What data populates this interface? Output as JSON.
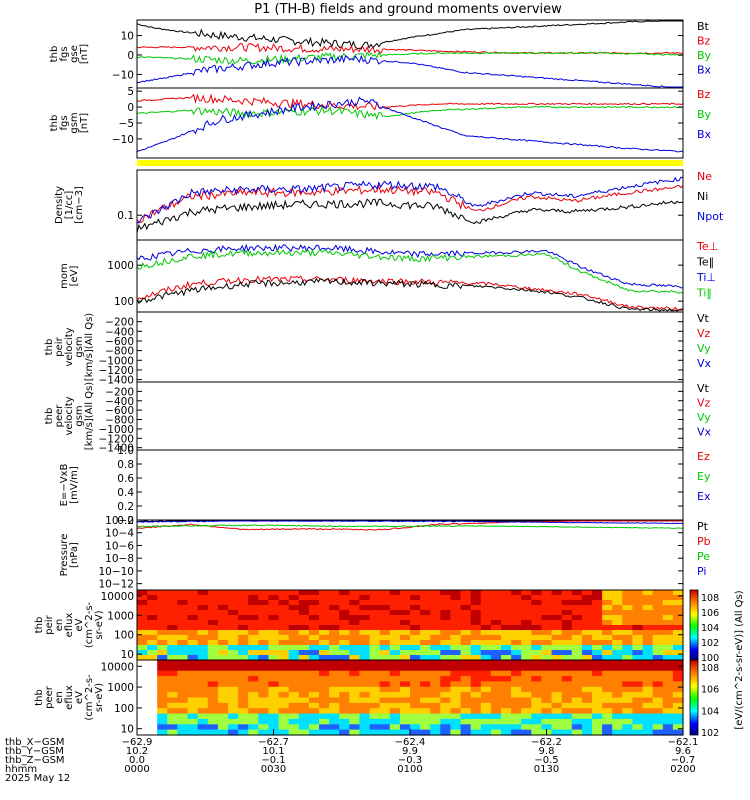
{
  "title": "P1 (TH-B) fields and ground moments overview",
  "colors": {
    "black": "#000000",
    "red": "#e8000b",
    "green": "#00c800",
    "blue": "#0000e0",
    "yellow": "#ffff00"
  },
  "chart_data": [
    {
      "type": "line",
      "panel": "fgs_gse",
      "ylabel": [
        "thb",
        "fgs",
        "gse",
        "[nT]"
      ],
      "ylim": [
        -17,
        18
      ],
      "yticks": [
        {
          "v": 10,
          "t": "10"
        },
        {
          "v": 0,
          "t": "0"
        },
        {
          "v": -10,
          "t": "−10"
        }
      ],
      "series": [
        {
          "name": "Bt",
          "color": "black",
          "x": [
            0,
            0.03,
            0.08,
            0.15,
            0.3,
            0.42,
            0.5,
            0.6,
            0.75,
            0.9,
            1.0
          ],
          "y": [
            16,
            14,
            12,
            10,
            7,
            5,
            9,
            13,
            15,
            17,
            18
          ]
        },
        {
          "name": "Bz",
          "color": "red",
          "x": [
            0,
            0.1,
            0.2,
            0.35,
            0.45,
            0.55,
            0.7,
            0.85,
            1.0
          ],
          "y": [
            4,
            4,
            4,
            3,
            3,
            2,
            1,
            1,
            1
          ]
        },
        {
          "name": "By",
          "color": "green",
          "x": [
            0,
            0.1,
            0.2,
            0.35,
            0.45,
            0.55,
            0.7,
            0.85,
            1.0
          ],
          "y": [
            -1,
            -2,
            -3,
            -1,
            0,
            1,
            1,
            1,
            0
          ]
        },
        {
          "name": "Bx",
          "color": "blue",
          "x": [
            0,
            0.05,
            0.12,
            0.25,
            0.4,
            0.5,
            0.6,
            0.75,
            0.9,
            1.0
          ],
          "y": [
            -14,
            -12,
            -8,
            -4,
            -2,
            -4,
            -9,
            -12,
            -15,
            -17
          ]
        }
      ]
    },
    {
      "type": "line",
      "panel": "fgs_gsm",
      "ylabel": [
        "thb",
        "fgs",
        "gsm",
        "[nT]"
      ],
      "ylim": [
        -16,
        6
      ],
      "yticks": [
        {
          "v": 5,
          "t": "5"
        },
        {
          "v": 0,
          "t": "0"
        },
        {
          "v": -5,
          "t": "−5"
        },
        {
          "v": -10,
          "t": "−10"
        }
      ],
      "series": [
        {
          "name": "Bz",
          "color": "red",
          "x": [
            0,
            0.1,
            0.2,
            0.3,
            0.45,
            0.55,
            0.7,
            0.85,
            1.0
          ],
          "y": [
            2,
            3,
            2,
            1,
            0,
            1,
            1,
            1,
            1
          ]
        },
        {
          "name": "By",
          "color": "green",
          "x": [
            0,
            0.1,
            0.2,
            0.35,
            0.45,
            0.55,
            0.7,
            0.85,
            1.0
          ],
          "y": [
            -2,
            -1,
            -2,
            -1,
            -3,
            -1,
            0,
            0,
            0
          ]
        },
        {
          "name": "Bx",
          "color": "blue",
          "x": [
            0,
            0.05,
            0.15,
            0.3,
            0.42,
            0.5,
            0.6,
            0.75,
            0.9,
            1.0
          ],
          "y": [
            -14,
            -11,
            -4,
            0,
            2,
            -3,
            -9,
            -11,
            -13,
            -14
          ]
        }
      ]
    },
    {
      "type": "line",
      "panel": "density",
      "ylabel": [
        "Density",
        "[1/cc]",
        "[cm−3]"
      ],
      "yscale": "log",
      "ylim": [
        0.03,
        0.9
      ],
      "yticks": [
        {
          "v": 0.1,
          "t": "0.1"
        }
      ],
      "series": [
        {
          "name": "Ne",
          "color": "red",
          "x": [
            0,
            0.1,
            0.2,
            0.3,
            0.45,
            0.55,
            0.62,
            0.72,
            0.8,
            0.9,
            1.0
          ],
          "y": [
            0.08,
            0.25,
            0.3,
            0.3,
            0.35,
            0.3,
            0.12,
            0.25,
            0.2,
            0.3,
            0.4
          ]
        },
        {
          "name": "Ni",
          "color": "black",
          "x": [
            0,
            0.1,
            0.2,
            0.3,
            0.45,
            0.55,
            0.62,
            0.72,
            0.8,
            0.9,
            1.0
          ],
          "y": [
            0.05,
            0.12,
            0.15,
            0.17,
            0.18,
            0.15,
            0.07,
            0.13,
            0.12,
            0.15,
            0.2
          ]
        },
        {
          "name": "Npot",
          "color": "blue",
          "x": [
            0,
            0.1,
            0.2,
            0.3,
            0.45,
            0.55,
            0.62,
            0.72,
            0.8,
            0.9,
            1.0
          ],
          "y": [
            0.07,
            0.3,
            0.35,
            0.35,
            0.45,
            0.4,
            0.15,
            0.3,
            0.25,
            0.4,
            0.6
          ]
        }
      ]
    },
    {
      "type": "line",
      "panel": "temperature",
      "ylabel": [
        "mom",
        "[eV]"
      ],
      "yscale": "log",
      "ylim": [
        50,
        5000
      ],
      "yticks": [
        {
          "v": 1000,
          "t": "1000"
        },
        {
          "v": 100,
          "t": "100"
        }
      ],
      "series": [
        {
          "name": "Te⊥",
          "color": "red",
          "x": [
            0,
            0.1,
            0.2,
            0.35,
            0.5,
            0.65,
            0.75,
            0.82,
            0.9,
            1.0
          ],
          "y": [
            120,
            300,
            400,
            400,
            350,
            300,
            200,
            150,
            70,
            60
          ]
        },
        {
          "name": "Te‖",
          "color": "black",
          "x": [
            0,
            0.1,
            0.2,
            0.35,
            0.5,
            0.65,
            0.75,
            0.82,
            0.9,
            1.0
          ],
          "y": [
            100,
            200,
            300,
            350,
            300,
            250,
            180,
            120,
            60,
            55
          ]
        },
        {
          "name": "Ti⊥",
          "color": "blue",
          "x": [
            0,
            0.1,
            0.2,
            0.35,
            0.5,
            0.65,
            0.75,
            0.82,
            0.9,
            1.0
          ],
          "y": [
            1500,
            2500,
            3000,
            3000,
            2000,
            2200,
            2500,
            800,
            300,
            250
          ]
        },
        {
          "name": "Ti‖",
          "color": "green",
          "x": [
            0,
            0.1,
            0.2,
            0.35,
            0.5,
            0.65,
            0.75,
            0.82,
            0.9,
            1.0
          ],
          "y": [
            900,
            1800,
            2200,
            2200,
            1500,
            1800,
            2000,
            600,
            200,
            180
          ]
        }
      ]
    },
    {
      "type": "line",
      "panel": "peir_velocity",
      "ylabel": [
        "thb",
        "peir",
        "velocity",
        "gsm",
        "[km/s](All Qs)"
      ],
      "ylim": [
        -1450,
        0
      ],
      "yticks": [
        {
          "v": -200,
          "t": "−200"
        },
        {
          "v": -400,
          "t": "−400"
        },
        {
          "v": -600,
          "t": "−600"
        },
        {
          "v": -800,
          "t": "−800"
        },
        {
          "v": -1000,
          "t": "−1000"
        },
        {
          "v": -1200,
          "t": "−1200"
        },
        {
          "v": -1400,
          "t": "−1400"
        }
      ],
      "series": [
        {
          "name": "Vt",
          "color": "black",
          "x": [],
          "y": []
        },
        {
          "name": "Vz",
          "color": "red",
          "x": [],
          "y": []
        },
        {
          "name": "Vy",
          "color": "green",
          "x": [],
          "y": []
        },
        {
          "name": "Vx",
          "color": "blue",
          "x": [],
          "y": []
        }
      ]
    },
    {
      "type": "line",
      "panel": "peer_velocity",
      "ylabel": [
        "thb",
        "peer",
        "velocity",
        "gsm",
        "[km/s](All Qs)"
      ],
      "ylim": [
        -1450,
        0
      ],
      "yticks": [
        {
          "v": -200,
          "t": "−200"
        },
        {
          "v": -400,
          "t": "−400"
        },
        {
          "v": -600,
          "t": "−600"
        },
        {
          "v": -800,
          "t": "−800"
        },
        {
          "v": -1000,
          "t": "−1000"
        },
        {
          "v": -1200,
          "t": "−1200"
        },
        {
          "v": -1400,
          "t": "−1400"
        }
      ],
      "series": [
        {
          "name": "Vt",
          "color": "black",
          "x": [],
          "y": []
        },
        {
          "name": "Vz",
          "color": "red",
          "x": [],
          "y": []
        },
        {
          "name": "Vy",
          "color": "green",
          "x": [],
          "y": []
        },
        {
          "name": "Vx",
          "color": "blue",
          "x": [],
          "y": []
        }
      ]
    },
    {
      "type": "line",
      "panel": "efield",
      "ylabel": [
        "E=−VxB",
        "[mV/m]"
      ],
      "ylim": [
        0,
        1.0
      ],
      "yticks": [
        {
          "v": 1.0,
          "t": "1.0"
        },
        {
          "v": 0.8,
          "t": "0.8"
        },
        {
          "v": 0.6,
          "t": "0.6"
        },
        {
          "v": 0.4,
          "t": "0.4"
        },
        {
          "v": 0.2,
          "t": "0.2"
        },
        {
          "v": 0.0,
          "t": "0.0"
        }
      ],
      "series": [
        {
          "name": "Ez",
          "color": "red",
          "x": [],
          "y": []
        },
        {
          "name": "Ey",
          "color": "green",
          "x": [],
          "y": []
        },
        {
          "name": "Ex",
          "color": "blue",
          "x": [],
          "y": []
        }
      ]
    },
    {
      "type": "line",
      "panel": "pressure",
      "ylabel": [
        "Pressure",
        "[nPa]"
      ],
      "yscale": "log",
      "ylim": [
        1e-13,
        0.01
      ],
      "yticks": [
        {
          "v": 0.01,
          "t": "10−2"
        },
        {
          "v": 0.0001,
          "t": "10−4"
        },
        {
          "v": 1e-06,
          "t": "10−6"
        },
        {
          "v": 1e-08,
          "t": "10−8"
        },
        {
          "v": 1e-10,
          "t": "10−10"
        },
        {
          "v": 1e-12,
          "t": "10−12"
        }
      ],
      "series": [
        {
          "name": "Pt",
          "color": "black",
          "x": [
            0,
            0.2,
            0.4,
            0.6,
            0.8,
            1.0
          ],
          "y": [
            0.006,
            0.01,
            0.012,
            0.01,
            0.01,
            0.01
          ]
        },
        {
          "name": "Pb",
          "color": "red",
          "x": [
            0,
            0.1,
            0.2,
            0.3,
            0.45,
            0.55,
            0.7,
            0.85,
            1.0
          ],
          "y": [
            0.0005,
            0.002,
            0.0003,
            0.0004,
            0.0003,
            0.002,
            0.005,
            0.008,
            0.01
          ]
        },
        {
          "name": "Pe",
          "color": "green",
          "x": [
            0,
            0.2,
            0.4,
            0.6,
            0.8,
            1.0
          ],
          "y": [
            0.001,
            0.0015,
            0.001,
            0.0012,
            0.0008,
            0.0005
          ]
        },
        {
          "name": "Pi",
          "color": "blue",
          "x": [
            0,
            0.2,
            0.4,
            0.6,
            0.8,
            1.0
          ],
          "y": [
            0.005,
            0.008,
            0.007,
            0.006,
            0.004,
            0.003
          ]
        }
      ]
    },
    {
      "type": "heatmap",
      "panel": "peir_en_eflux",
      "ylabel": [
        "thb",
        "peir",
        "en",
        "eflux",
        "eV",
        "(cm^2-s-",
        "sr-eV)"
      ],
      "yscale": "log",
      "ylim": [
        5,
        20000
      ],
      "yticks": [
        {
          "v": 10000,
          "t": "10000"
        },
        {
          "v": 1000,
          "t": "1000"
        },
        {
          "v": 100,
          "t": "100"
        },
        {
          "v": 10,
          "t": "10"
        }
      ]
    },
    {
      "type": "heatmap",
      "panel": "peer_en_eflux",
      "ylabel": [
        "thb",
        "peer",
        "en",
        "eflux",
        "eV",
        "(cm^2-s-",
        "sr-eV)"
      ],
      "yscale": "log",
      "ylim": [
        5,
        20000
      ],
      "yticks": [
        {
          "v": 10000,
          "t": "10000"
        },
        {
          "v": 1000,
          "t": "1000"
        },
        {
          "v": 100,
          "t": "100"
        },
        {
          "v": 10,
          "t": "10"
        }
      ]
    }
  ],
  "colorbar": {
    "label": "[eV/(cm^2-s-sr-eV)] (All Qs)",
    "top_ticks": [
      "108",
      "106",
      "104",
      "102",
      "100"
    ],
    "bottom_ticks": [
      "108",
      "106",
      "104",
      "102"
    ]
  },
  "x_axis": {
    "ticks": [
      {
        "pos": 0.0,
        "X": "−62.9",
        "Y": "10.2",
        "Z": "0.0",
        "t": "0000"
      },
      {
        "pos": 0.25,
        "X": "−62.7",
        "Y": "10.1",
        "Z": "−0.1",
        "t": "0030"
      },
      {
        "pos": 0.5,
        "X": "−62.4",
        "Y": "9.9",
        "Z": "−0.3",
        "t": "0100"
      },
      {
        "pos": 0.75,
        "X": "−62.2",
        "Y": "9.8",
        "Z": "−0.5",
        "t": "0130"
      },
      {
        "pos": 1.0,
        "X": "−62.1",
        "Y": "9.6",
        "Z": "−0.7",
        "t": "0200"
      }
    ],
    "row_labels": [
      "thb_X−GSM",
      "thb_Y−GSM",
      "thb_Z−GSM",
      "hhmm",
      "2025 May 12"
    ]
  }
}
